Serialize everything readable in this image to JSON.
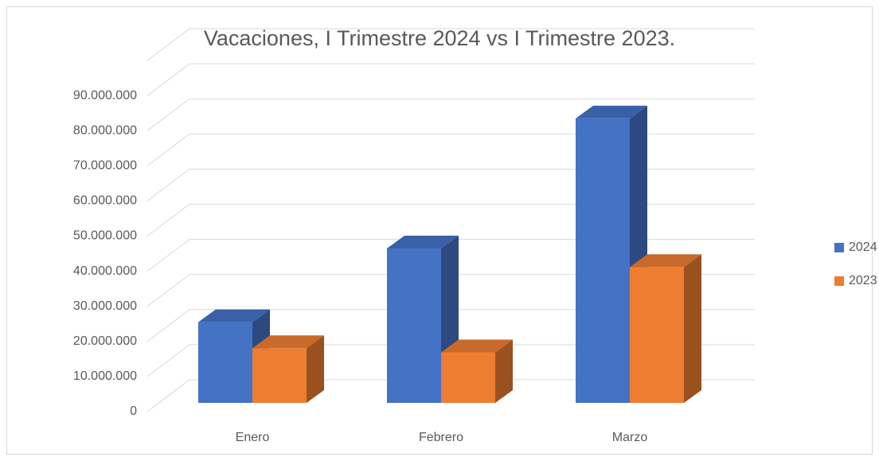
{
  "chart_data": {
    "type": "bar3d",
    "title": "Vacaciones, I Trimestre 2024 vs I Trimestre 2023.",
    "categories": [
      "Enero",
      "Febrero",
      "Marzo"
    ],
    "series": [
      {
        "name": "2024",
        "color": "#4472c4",
        "values": [
          23000000,
          44000000,
          81000000
        ]
      },
      {
        "name": "2023",
        "color": "#ed7d31",
        "values": [
          15600000,
          14400000,
          38700000
        ]
      }
    ],
    "ylim": [
      0,
      100000000
    ],
    "yticks": [
      0,
      {
        "value": 10000000,
        "label": "10.000.000"
      },
      {
        "value": 20000000,
        "label": "20.000.000"
      },
      {
        "value": 30000000,
        "label": "30.000.000"
      },
      {
        "value": 40000000,
        "label": "40.000.000"
      },
      {
        "value": 50000000,
        "label": "50.000.000"
      },
      {
        "value": 60000000,
        "label": "60.000.000"
      },
      {
        "value": 70000000,
        "label": "70.000.000"
      },
      {
        "value": 80000000,
        "label": "80.000.000"
      },
      {
        "value": 90000000,
        "label": "90.000.000"
      }
    ],
    "grid": true,
    "legend": "right"
  }
}
